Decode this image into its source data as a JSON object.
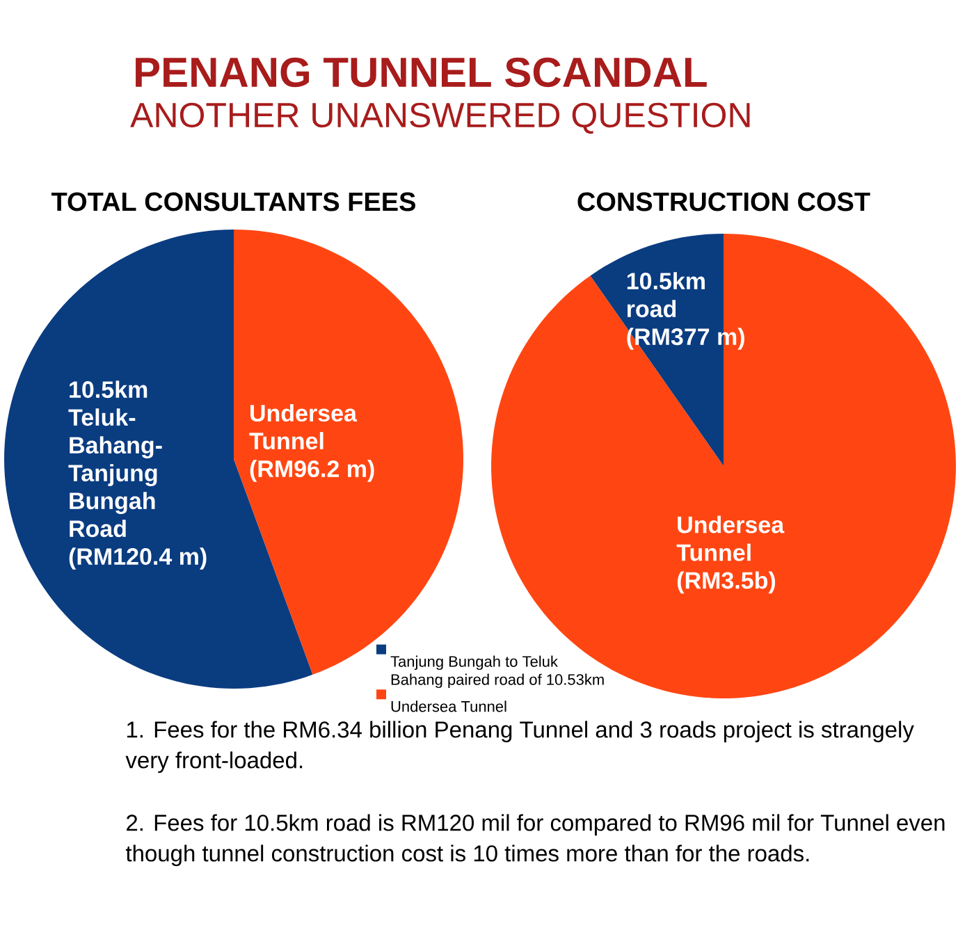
{
  "chart_data": [
    {
      "type": "other",
      "title": "PENANG TUNNEL SCANDAL",
      "subtitle": "ANOTHER UNANSWERED QUESTION"
    },
    {
      "type": "pie",
      "title": "TOTAL CONSULTANTS FEES",
      "categories": [
        "Tanjung Bungah to Teluk Bahang paired road of 10.53km",
        "Undersea Tunnel"
      ],
      "values": [
        120.4,
        96.2
      ],
      "colors": [
        "#0a3c80",
        "#ff4612"
      ],
      "value_labels": [
        "10.5km Teluk-Bahang-Tanjung Bungah Road (RM120.4 m)",
        "Undersea Tunnel (RM96.2 m)"
      ],
      "legend": "bottom right"
    },
    {
      "type": "pie",
      "title": "CONSTRUCTION COST",
      "categories": [
        "10.5km road",
        "Undersea Tunnel"
      ],
      "values": [
        377,
        3500
      ],
      "colors": [
        "#0a3c80",
        "#ff4612"
      ],
      "value_labels": [
        "(RM377 m)",
        "(RM3.5b)"
      ]
    },
    {
      "type": "other",
      "annotations": [
        "1. Fees for the RM6.34 billion Penang Tunnel and 3 roads project is strangely very front-loaded.",
        "2. Fees for 10.5km road is RM120 mil for compared to RM96 mil for Tunnel even though tunnel construction cost is 10 times more than for the roads."
      ]
    }
  ]
}
